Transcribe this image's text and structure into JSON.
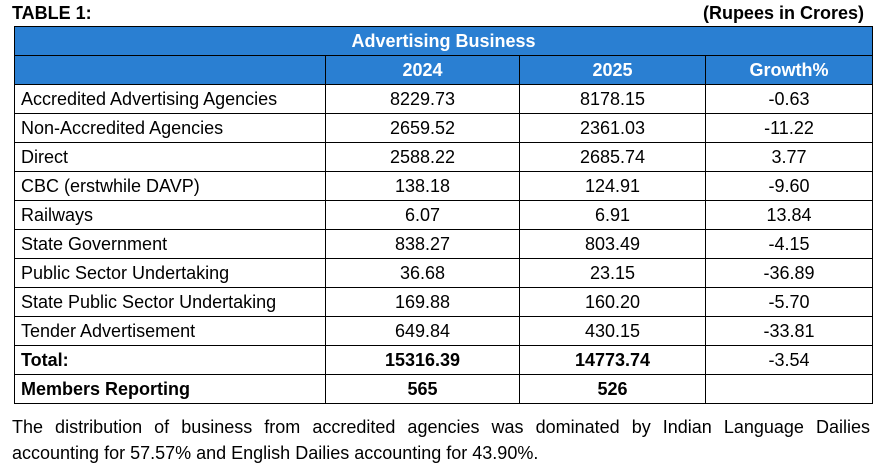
{
  "header": {
    "table_label": "TABLE 1:",
    "unit_note": "(Rupees in Crores)"
  },
  "table": {
    "banner": "Advertising Business",
    "columns": [
      "",
      "2024",
      "2025",
      "Growth%"
    ],
    "rows": [
      [
        "Accredited Advertising Agencies",
        "8229.73",
        "8178.15",
        "-0.63"
      ],
      [
        "Non-Accredited Agencies",
        "2659.52",
        "2361.03",
        "-11.22"
      ],
      [
        "Direct",
        "2588.22",
        "2685.74",
        "3.77"
      ],
      [
        "CBC (erstwhile DAVP)",
        "138.18",
        "124.91",
        "-9.60"
      ],
      [
        "Railways",
        "6.07",
        "6.91",
        "13.84"
      ],
      [
        "State Government",
        "838.27",
        "803.49",
        "-4.15"
      ],
      [
        "Public Sector Undertaking",
        "36.68",
        "23.15",
        "-36.89"
      ],
      [
        "State Public Sector Undertaking",
        "169.88",
        "160.20",
        "-5.70"
      ],
      [
        "Tender Advertisement",
        "649.84",
        "430.15",
        "-33.81"
      ]
    ],
    "total": [
      "Total:",
      "15316.39",
      "14773.74",
      "-3.54"
    ],
    "members": [
      "Members Reporting",
      "565",
      "526",
      ""
    ]
  },
  "note": "The distribution of business from accredited agencies was dominated by Indian Language Dailies accounting for 57.57% and English Dailies accounting for 43.90%.",
  "colors": {
    "header_bg": "#2a7fd2",
    "header_text": "#ffffff"
  }
}
